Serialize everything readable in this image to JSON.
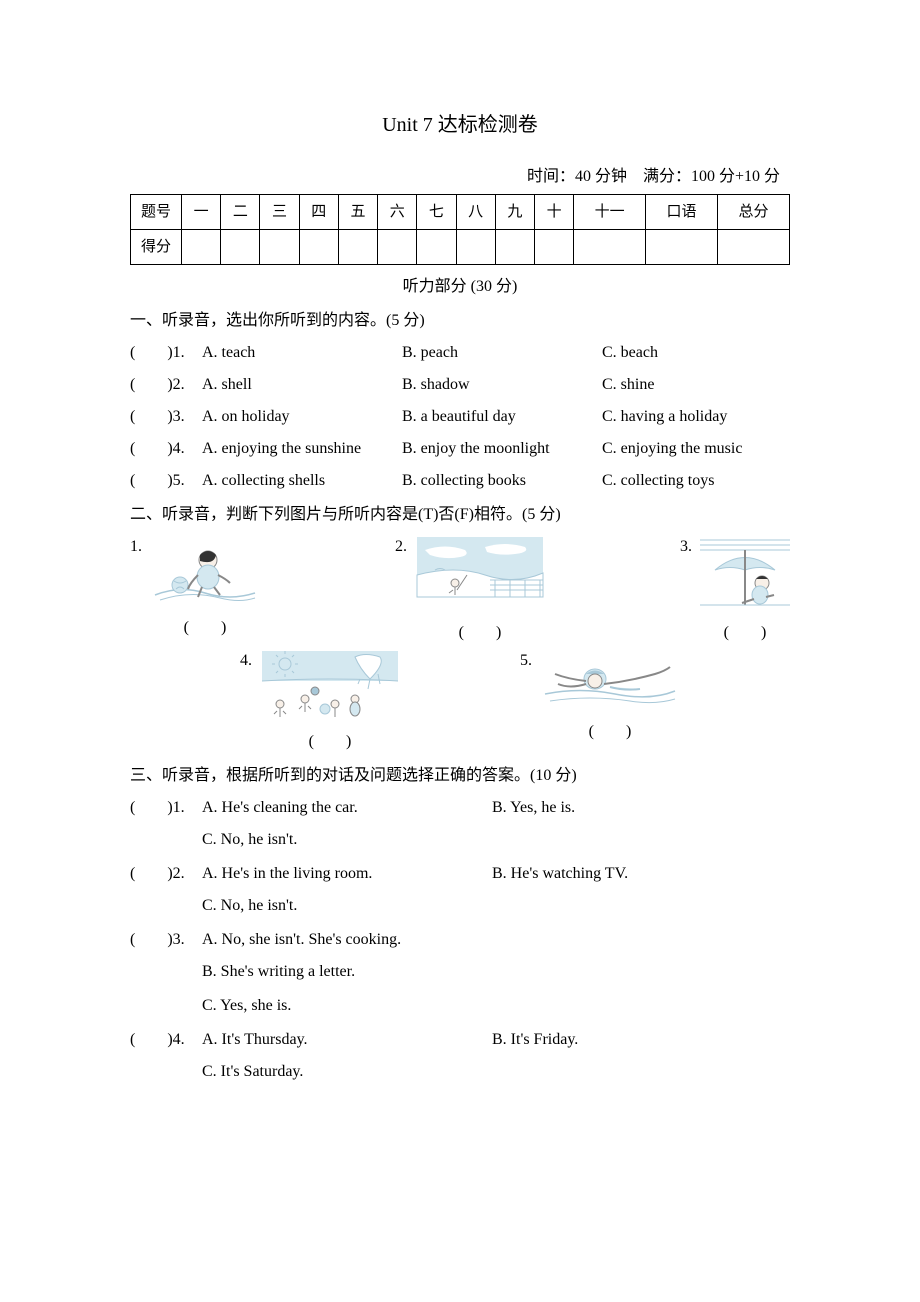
{
  "title": "Unit 7 达标检测卷",
  "subtitle": "时间：40 分钟　满分：100 分+10 分",
  "score_table": {
    "row1": [
      "题号",
      "一",
      "二",
      "三",
      "四",
      "五",
      "六",
      "七",
      "八",
      "九",
      "十",
      "十一",
      "口语",
      "总分"
    ],
    "row2_label": "得分"
  },
  "listening_header": "听力部分 (30 分)",
  "section1": {
    "title": "一、听录音，选出你所听到的内容。(5 分)",
    "items": [
      {
        "n": "1",
        "a": "A. teach",
        "b": "B. peach",
        "c": "C. beach"
      },
      {
        "n": "2",
        "a": "A. shell",
        "b": "B. shadow",
        "c": "C. shine"
      },
      {
        "n": "3",
        "a": "A. on holiday",
        "b": "B. a beautiful day",
        "c": "C. having a holiday"
      },
      {
        "n": "4",
        "a": "A. enjoying the sunshine",
        "b": "B. enjoy the moonlight",
        "c": "C. enjoying the music"
      },
      {
        "n": "5",
        "a": "A. collecting shells",
        "b": "B. collecting books",
        "c": "C. collecting toys"
      }
    ]
  },
  "section2": {
    "title": "二、听录音，判断下列图片与所听内容是(T)否(F)相符。(5 分)",
    "blank": "(　　)",
    "nums": [
      "1.",
      "2.",
      "3.",
      "4.",
      "5."
    ],
    "colors": {
      "outline": "#a8c8d8",
      "fill": "#d4e8f0",
      "skin": "#f8f0e8"
    }
  },
  "section3": {
    "title": "三、听录音，根据所听到的对话及问题选择正确的答案。(10 分)",
    "items": [
      {
        "n": "1",
        "a": "A. He's cleaning the car.",
        "b": "B. Yes, he is.",
        "c": "C. No, he isn't."
      },
      {
        "n": "2",
        "a": "A. He's in the living room.",
        "b": "B. He's watching TV.",
        "c": "C. No, he isn't."
      },
      {
        "n": "3",
        "a": "A. No, she isn't. She's cooking.",
        "b": "B. She's writing a letter.",
        "c": "C. Yes, she is."
      },
      {
        "n": "4",
        "a": "A. It's Thursday.",
        "b": "B. It's Friday.",
        "c": "C. It's Saturday."
      }
    ]
  },
  "paren_blank": "(　　)"
}
